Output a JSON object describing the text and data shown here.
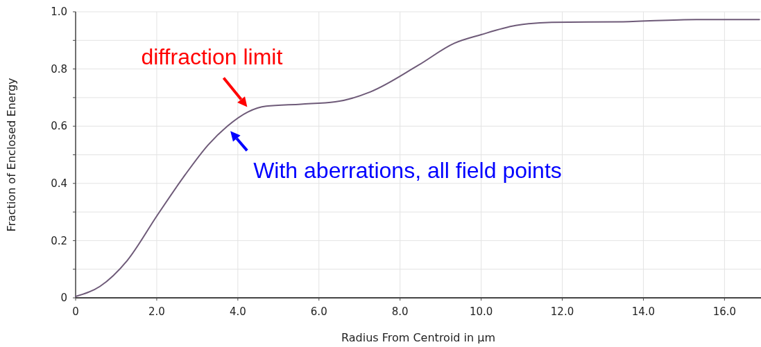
{
  "chart_data": {
    "type": "line",
    "xlabel": "Radius From Centroid in µm",
    "ylabel": "Fraction of Enclosed Energy",
    "x": [
      0,
      0.6,
      1.27,
      2.02,
      2.7,
      3.27,
      3.74,
      4.25,
      4.7,
      5.55,
      6.4,
      7.27,
      8.45,
      9.34,
      10.0,
      10.85,
      11.74,
      13.5,
      15.3,
      16.86
    ],
    "series": [
      {
        "color": "#6e5a78",
        "values": [
          0.005,
          0.04,
          0.13,
          0.29,
          0.43,
          0.535,
          0.6,
          0.65,
          0.67,
          0.677,
          0.685,
          0.72,
          0.813,
          0.89,
          0.92,
          0.952,
          0.963,
          0.965,
          0.973,
          0.973
        ]
      }
    ],
    "xlim": [
      0,
      16.9
    ],
    "ylim": [
      0,
      1
    ],
    "xticks": [
      0,
      {
        "value": 2,
        "label": "2.0"
      },
      {
        "value": 4,
        "label": "4.0"
      },
      {
        "value": 6,
        "label": "6.0"
      },
      {
        "value": 8,
        "label": "8.0"
      },
      {
        "value": 10,
        "label": "10.0"
      },
      {
        "value": 12,
        "label": "12.0"
      },
      {
        "value": 14,
        "label": "14.0"
      },
      {
        "value": 16,
        "label": "16.0"
      }
    ],
    "yticks": [
      0,
      {
        "value": 0.1,
        "label": null
      },
      0.2,
      {
        "value": 0.3,
        "label": null
      },
      0.4,
      {
        "value": 0.5,
        "label": null
      },
      0.6,
      {
        "value": 0.7,
        "label": null
      },
      0.8,
      {
        "value": 0.9,
        "label": null
      },
      {
        "value": 1,
        "label": "1.0"
      }
    ],
    "grid": true,
    "marker": "none",
    "line_style": "solid",
    "annotations": [
      {
        "text": "diffraction limit",
        "x": 4.3,
        "y": 0.66
      },
      {
        "text": "With aberrations, all field points",
        "x": 3.8,
        "y": 0.59
      }
    ]
  }
}
